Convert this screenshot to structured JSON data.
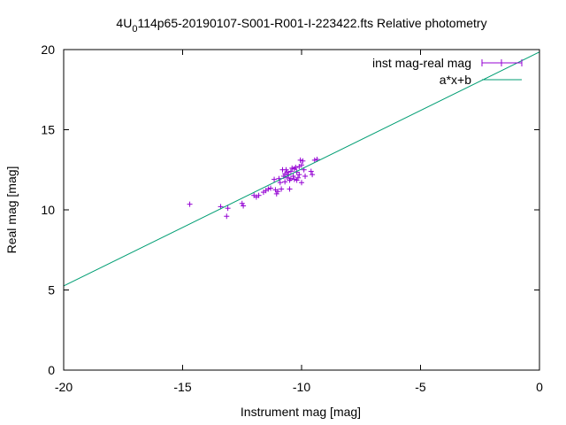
{
  "chart_data": {
    "type": "scatter",
    "title_prefix": "4U",
    "title_subscript": "0",
    "title_suffix": "114p65-20190107-S001-R001-I-223422.fts Relative photometry",
    "xlabel": "Instrument mag [mag]",
    "ylabel": "Real mag [mag]",
    "xlim": [
      -20,
      0
    ],
    "ylim": [
      0,
      20
    ],
    "xticks": [
      -20,
      -15,
      -10,
      -5,
      0
    ],
    "yticks": [
      0,
      5,
      10,
      15,
      20
    ],
    "grid": false,
    "legend_position": "top-right",
    "series": [
      {
        "name": "inst mag-real mag",
        "kind": "points",
        "color": "#9400d3",
        "points": [
          [
            -14.7,
            10.35
          ],
          [
            -13.4,
            10.2
          ],
          [
            -13.1,
            10.1
          ],
          [
            -13.15,
            9.6
          ],
          [
            -12.5,
            10.4
          ],
          [
            -12.45,
            10.25
          ],
          [
            -12.0,
            10.9
          ],
          [
            -11.9,
            10.8
          ],
          [
            -11.8,
            10.9
          ],
          [
            -11.6,
            11.1
          ],
          [
            -11.5,
            11.2
          ],
          [
            -11.4,
            11.3
          ],
          [
            -11.3,
            11.35
          ],
          [
            -11.15,
            11.9
          ],
          [
            -11.1,
            11.25
          ],
          [
            -11.05,
            11.0
          ],
          [
            -11.0,
            11.15
          ],
          [
            -10.95,
            11.95
          ],
          [
            -10.9,
            11.7
          ],
          [
            -10.85,
            11.3
          ],
          [
            -10.8,
            12.5
          ],
          [
            -10.75,
            12.1
          ],
          [
            -10.7,
            12.25
          ],
          [
            -10.65,
            12.5
          ],
          [
            -10.6,
            12.0
          ],
          [
            -10.55,
            12.2
          ],
          [
            -10.5,
            11.85
          ],
          [
            -10.5,
            11.3
          ],
          [
            -10.45,
            12.4
          ],
          [
            -10.4,
            12.6
          ],
          [
            -10.35,
            12.1
          ],
          [
            -10.3,
            11.9
          ],
          [
            -10.25,
            12.65
          ],
          [
            -10.2,
            12.35
          ],
          [
            -10.15,
            12.0
          ],
          [
            -10.1,
            12.7
          ],
          [
            -10.1,
            12.2
          ],
          [
            -10.05,
            13.1
          ],
          [
            -10.0,
            12.8
          ],
          [
            -9.95,
            13.05
          ],
          [
            -9.9,
            12.5
          ],
          [
            -9.85,
            12.1
          ],
          [
            -10.2,
            11.85
          ],
          [
            -10.0,
            11.7
          ],
          [
            -9.6,
            12.4
          ],
          [
            -9.55,
            12.2
          ],
          [
            -9.45,
            13.1
          ],
          [
            -9.35,
            13.15
          ],
          [
            -10.6,
            12.35
          ],
          [
            -10.45,
            11.95
          ],
          [
            -10.3,
            12.55
          ],
          [
            -10.7,
            11.75
          ]
        ]
      },
      {
        "name": "a*x+b",
        "kind": "line",
        "color": "#009e73",
        "x": [
          -20,
          0
        ],
        "y": [
          5.25,
          19.85
        ]
      }
    ]
  }
}
